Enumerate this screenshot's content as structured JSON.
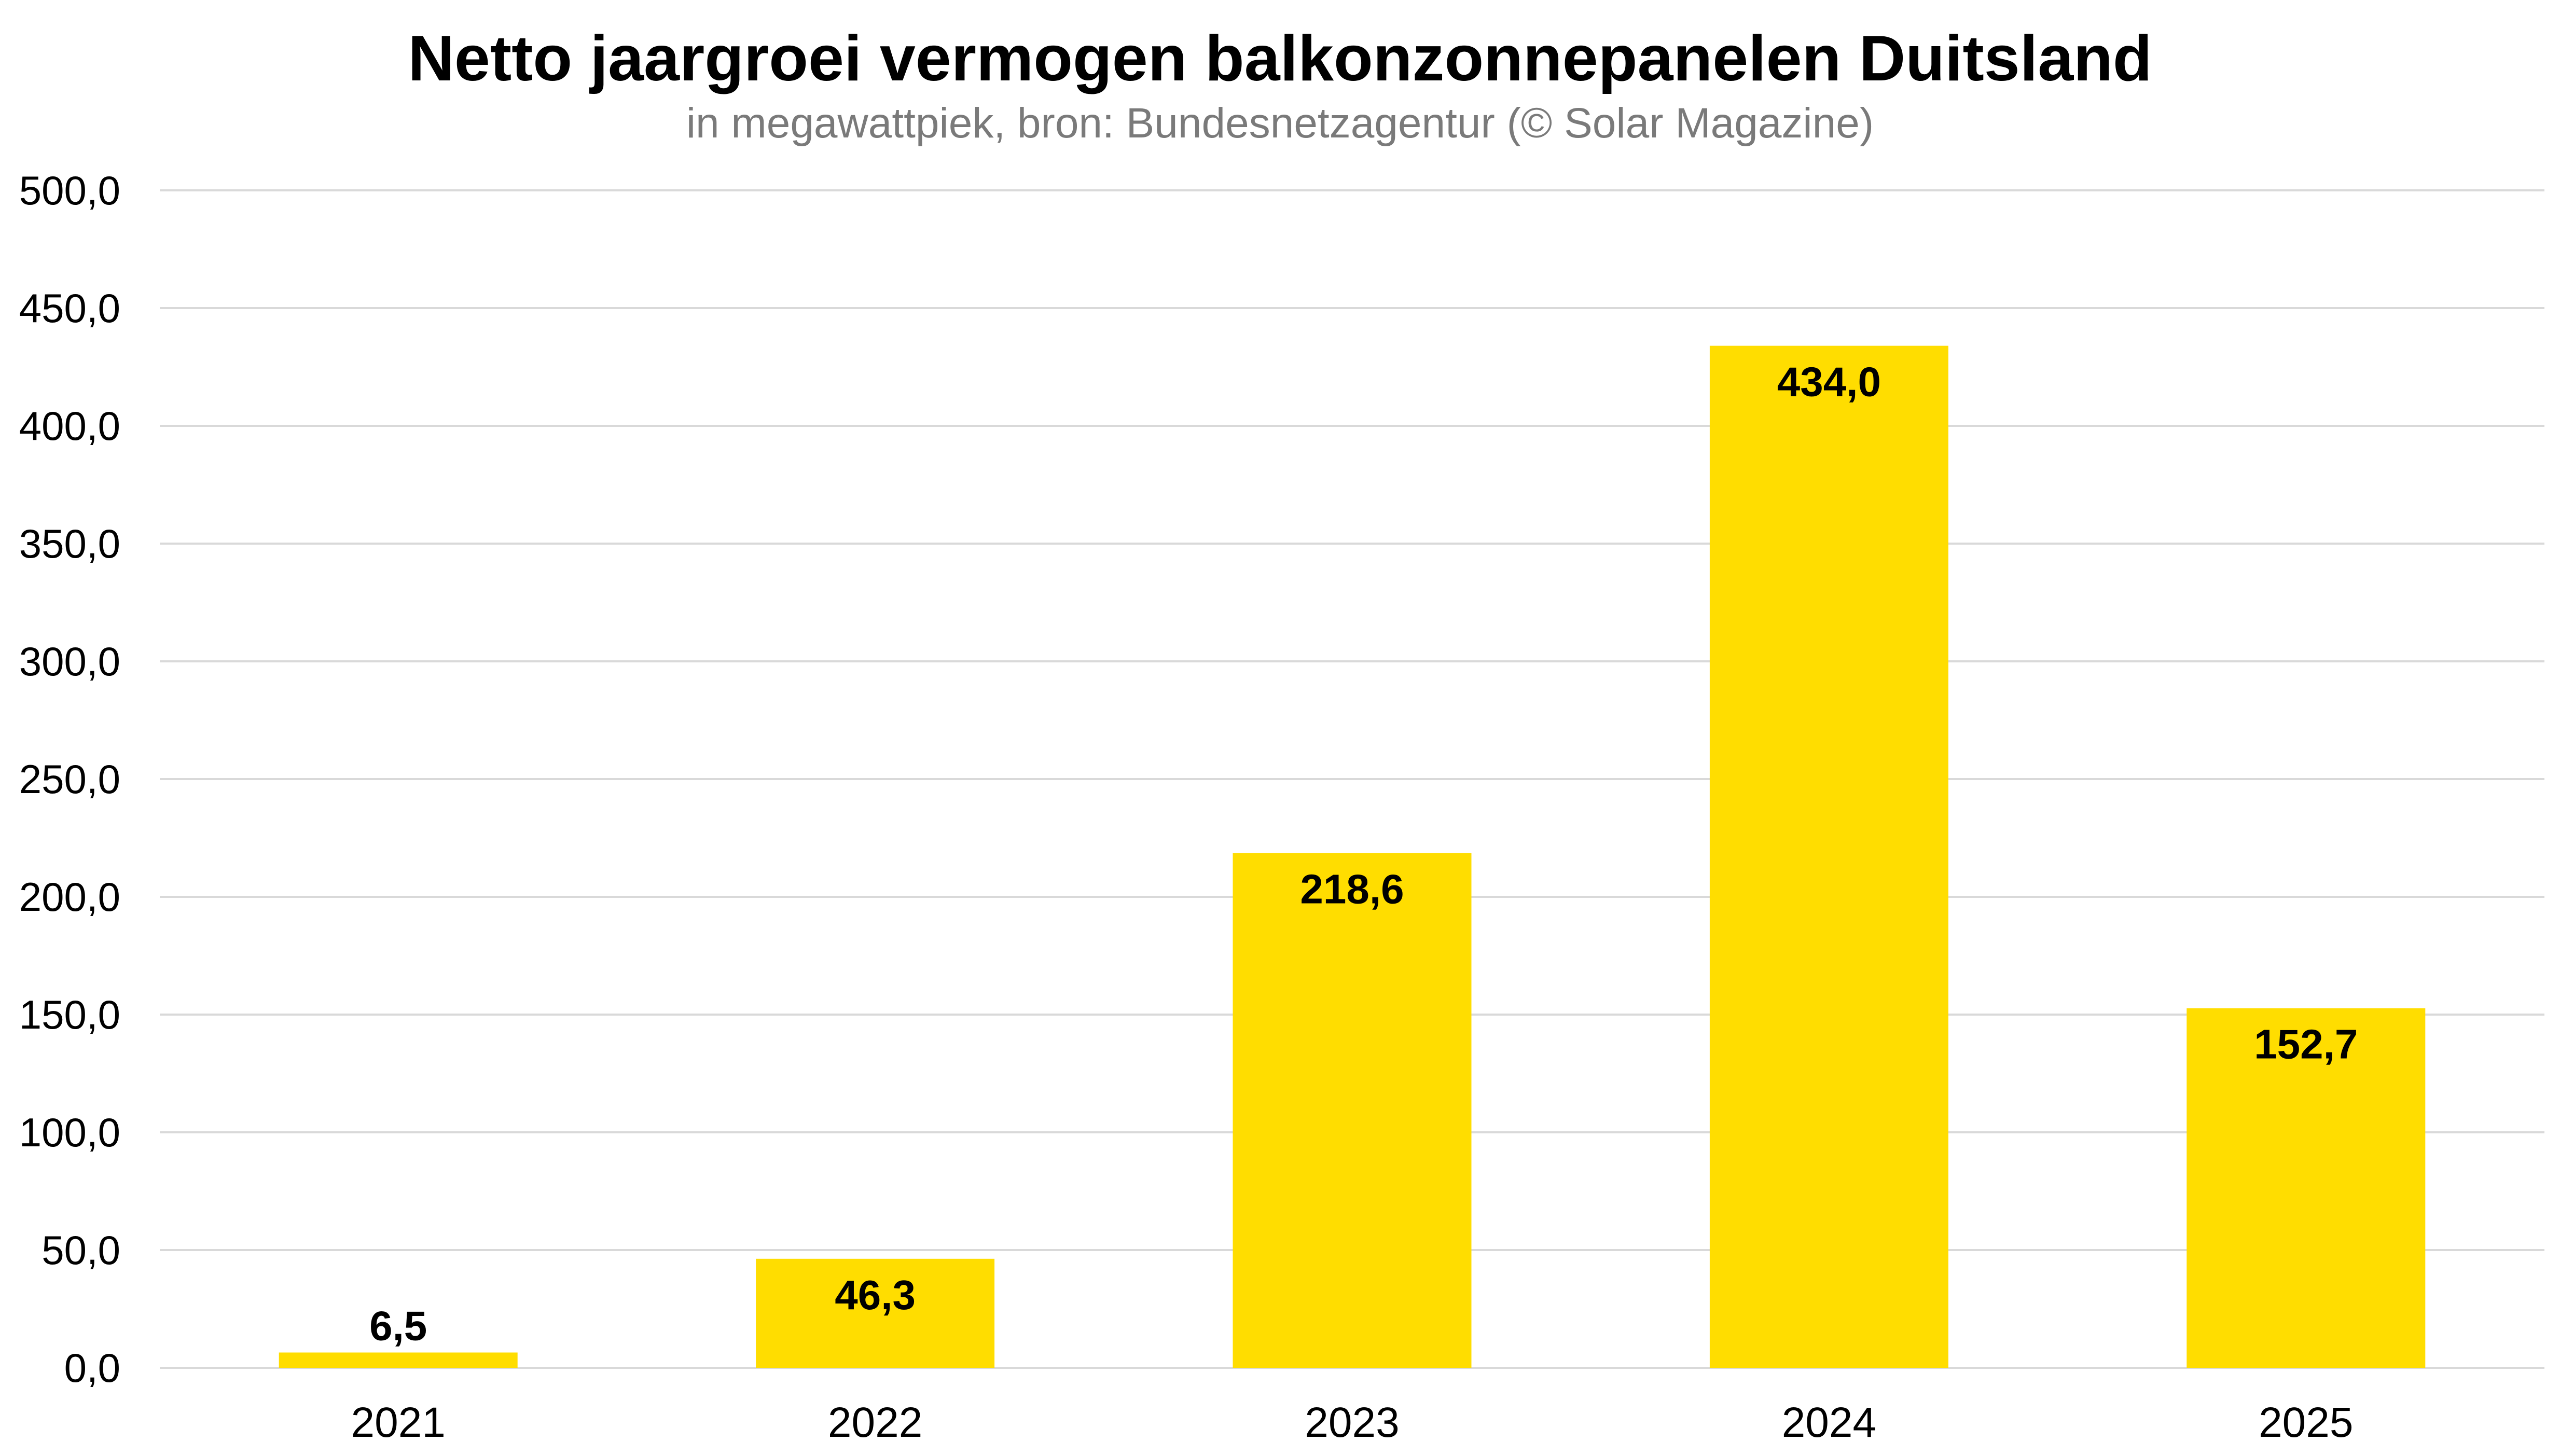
{
  "chart_data": {
    "type": "bar",
    "title": "Netto jaargroei vermogen balkonzonnepanelen Duitsland",
    "subtitle": "in megawattpiek, bron: Bundesnetzagentur (© Solar Magazine)",
    "xlabel": "",
    "ylabel": "",
    "categories": [
      "2021",
      "2022",
      "2023",
      "2024",
      "2025"
    ],
    "values": [
      6.5,
      46.3,
      218.6,
      434.0,
      152.7
    ],
    "value_labels": [
      "6,5",
      "46,3",
      "218,6",
      "434,0",
      "152,7"
    ],
    "ylim": [
      0,
      500
    ],
    "yticks": [
      0,
      50,
      100,
      150,
      200,
      250,
      300,
      350,
      400,
      450,
      500
    ],
    "ytick_labels": [
      "0,0",
      "50,0",
      "100,0",
      "150,0",
      "200,0",
      "250,0",
      "300,0",
      "350,0",
      "400,0",
      "450,0",
      "500,0"
    ],
    "grid": true,
    "legend": "none",
    "colors": {
      "bar": "#FFDD00",
      "grid": "#d9d9d9",
      "text": "#000000",
      "subtitle": "#7a7a7a"
    }
  }
}
